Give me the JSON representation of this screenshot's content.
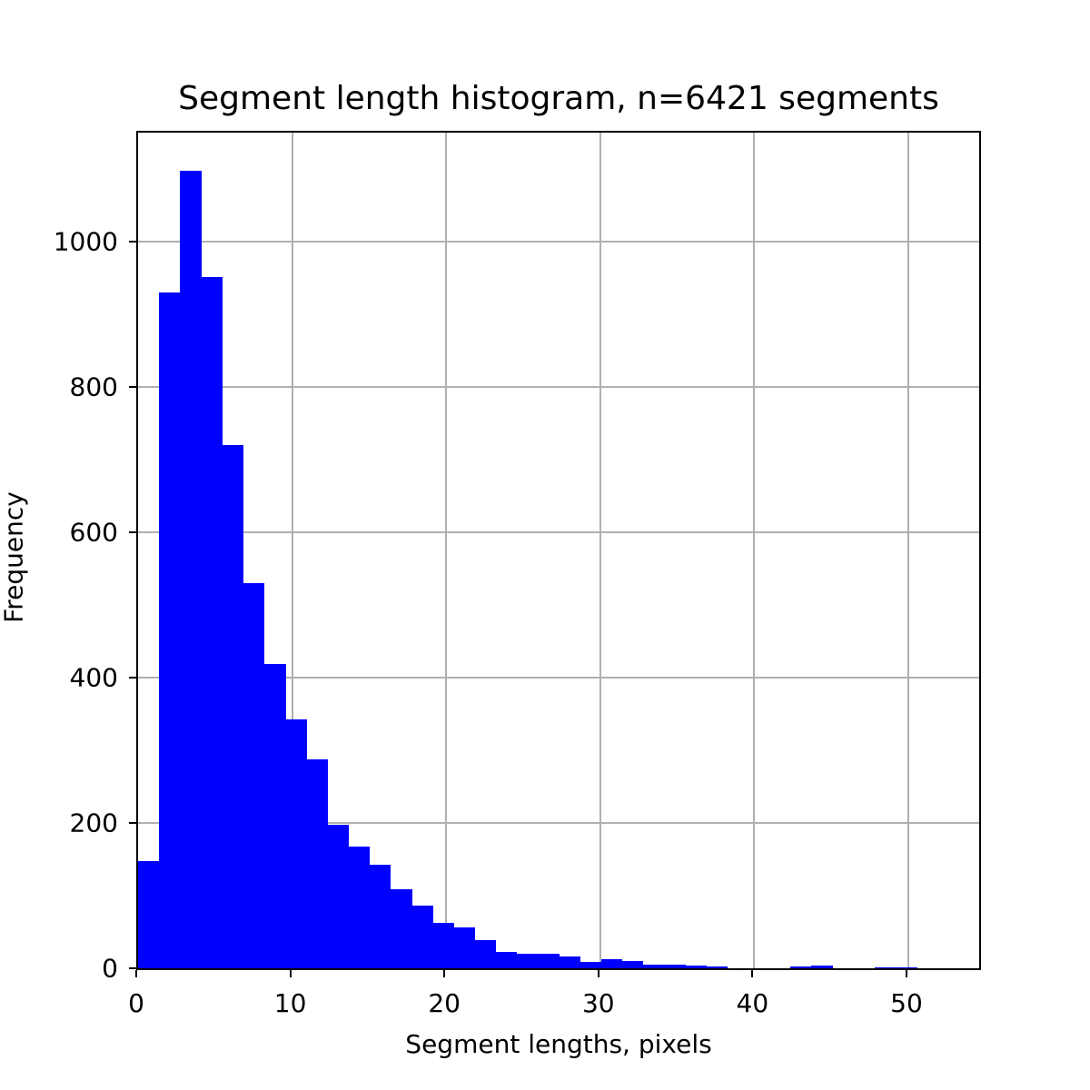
{
  "chart_data": {
    "type": "bar",
    "title": "Segment length histogram, n=6421 segments",
    "xlabel": "Segment lengths, pixels",
    "ylabel": "Frequency",
    "xlim": [
      0,
      54.6
    ],
    "ylim": [
      0,
      1150
    ],
    "grid": true,
    "bar_color": "#0000ff",
    "bin_width": 1.366,
    "x_ticks": [
      0,
      10,
      20,
      30,
      40,
      50
    ],
    "y_ticks": [
      0,
      200,
      400,
      600,
      800,
      1000
    ],
    "values": [
      148,
      930,
      1097,
      951,
      720,
      530,
      419,
      343,
      287,
      197,
      168,
      143,
      109,
      86,
      63,
      56,
      39,
      23,
      20,
      20,
      16,
      9,
      12,
      10,
      5,
      5,
      4,
      2,
      0,
      0,
      0,
      2,
      4,
      0,
      0,
      1,
      1,
      0,
      0,
      0
    ]
  }
}
